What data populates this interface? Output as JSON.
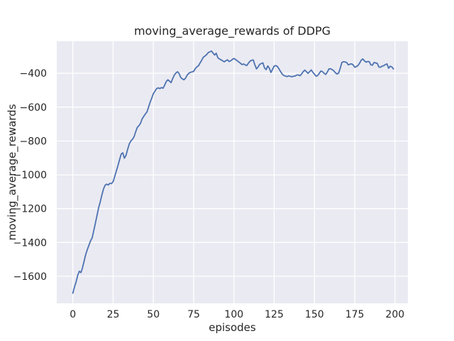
{
  "figure": {
    "background_color": "#ffffff"
  },
  "chart_data": {
    "type": "line",
    "title": "moving_average_rewards of DDPG",
    "xlabel": "episodes",
    "ylabel": "moving_average_rewards",
    "grid": true,
    "legend": false,
    "style": {
      "axes_background": "#eaeaf2",
      "grid_color": "#ffffff",
      "text_color": "#262626",
      "line_color": "#4c72b0",
      "line_width": 1.8
    },
    "xlim": [
      -10,
      208
    ],
    "ylim": [
      -1760,
      -210
    ],
    "x_ticks": [
      0,
      25,
      50,
      75,
      100,
      125,
      150,
      175,
      200
    ],
    "x_tick_labels": [
      "0",
      "25",
      "50",
      "75",
      "100",
      "125",
      "150",
      "175",
      "200"
    ],
    "y_ticks": [
      -400,
      -600,
      -800,
      -1000,
      -1200,
      -1400,
      -1600
    ],
    "y_tick_labels": [
      "−400",
      "−600",
      "−800",
      "−1000",
      "−1200",
      "−1400",
      "−1600"
    ],
    "series": [
      {
        "name": "moving_average_rewards",
        "color": "#4c72b0",
        "x_is_episode_index": true,
        "x_start": 0,
        "x_step": 1,
        "y": [
          -1700,
          -1663,
          -1635,
          -1595,
          -1570,
          -1578,
          -1550,
          -1510,
          -1470,
          -1442,
          -1416,
          -1390,
          -1372,
          -1330,
          -1285,
          -1240,
          -1195,
          -1160,
          -1120,
          -1085,
          -1062,
          -1055,
          -1060,
          -1050,
          -1052,
          -1040,
          -1010,
          -978,
          -945,
          -910,
          -878,
          -870,
          -902,
          -885,
          -850,
          -818,
          -800,
          -790,
          -775,
          -745,
          -720,
          -710,
          -695,
          -670,
          -655,
          -640,
          -628,
          -600,
          -570,
          -545,
          -520,
          -505,
          -490,
          -486,
          -490,
          -484,
          -488,
          -470,
          -448,
          -438,
          -446,
          -455,
          -430,
          -410,
          -398,
          -390,
          -402,
          -425,
          -433,
          -438,
          -428,
          -410,
          -400,
          -394,
          -392,
          -388,
          -372,
          -362,
          -355,
          -338,
          -322,
          -305,
          -298,
          -290,
          -278,
          -273,
          -268,
          -280,
          -292,
          -281,
          -308,
          -315,
          -320,
          -326,
          -332,
          -325,
          -320,
          -330,
          -326,
          -318,
          -312,
          -318,
          -325,
          -333,
          -340,
          -348,
          -345,
          -350,
          -354,
          -340,
          -328,
          -323,
          -321,
          -350,
          -374,
          -362,
          -347,
          -342,
          -338,
          -368,
          -378,
          -356,
          -370,
          -395,
          -375,
          -357,
          -354,
          -360,
          -374,
          -390,
          -405,
          -413,
          -416,
          -419,
          -415,
          -418,
          -420,
          -417,
          -416,
          -410,
          -409,
          -414,
          -404,
          -390,
          -381,
          -390,
          -400,
          -390,
          -380,
          -394,
          -405,
          -417,
          -413,
          -400,
          -386,
          -390,
          -400,
          -406,
          -392,
          -374,
          -373,
          -378,
          -385,
          -397,
          -404,
          -398,
          -370,
          -336,
          -331,
          -333,
          -336,
          -350,
          -346,
          -344,
          -350,
          -364,
          -360,
          -354,
          -340,
          -322,
          -315,
          -326,
          -334,
          -330,
          -331,
          -350,
          -352,
          -336,
          -338,
          -342,
          -362,
          -364,
          -357,
          -355,
          -348,
          -344,
          -370,
          -358,
          -362,
          -374
        ]
      }
    ]
  }
}
